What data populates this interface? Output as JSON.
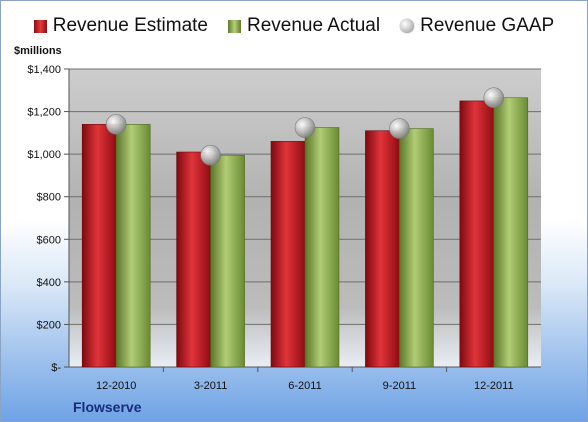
{
  "legend": {
    "estimate": "Revenue Estimate",
    "actual": "Revenue Actual",
    "gaap": "Revenue GAAP"
  },
  "unit_label": "$millions",
  "company": "Flowserve",
  "colors": {
    "estimate": "#c0121b",
    "actual": "#8fb24e",
    "gaap": "#b8b8b8"
  },
  "chart_data": {
    "type": "bar",
    "title": "",
    "xlabel": "",
    "ylabel": "$millions",
    "categories": [
      "12-2010",
      "3-2011",
      "6-2011",
      "9-2011",
      "12-2011"
    ],
    "ylim": [
      0,
      1400
    ],
    "yticks": [
      0,
      200,
      400,
      600,
      800,
      1000,
      1200,
      1400
    ],
    "ytick_labels": [
      "$-",
      "$200",
      "$400",
      "$600",
      "$800",
      "$1,000",
      "$1,200",
      "$1,400"
    ],
    "grid": true,
    "legend_position": "top",
    "series": [
      {
        "name": "Revenue Estimate",
        "kind": "bar",
        "values": [
          1140,
          1010,
          1060,
          1110,
          1250
        ]
      },
      {
        "name": "Revenue Actual",
        "kind": "bar",
        "values": [
          1140,
          995,
          1125,
          1120,
          1265
        ]
      },
      {
        "name": "Revenue GAAP",
        "kind": "marker",
        "values": [
          1140,
          995,
          1125,
          1120,
          1265
        ]
      }
    ]
  }
}
